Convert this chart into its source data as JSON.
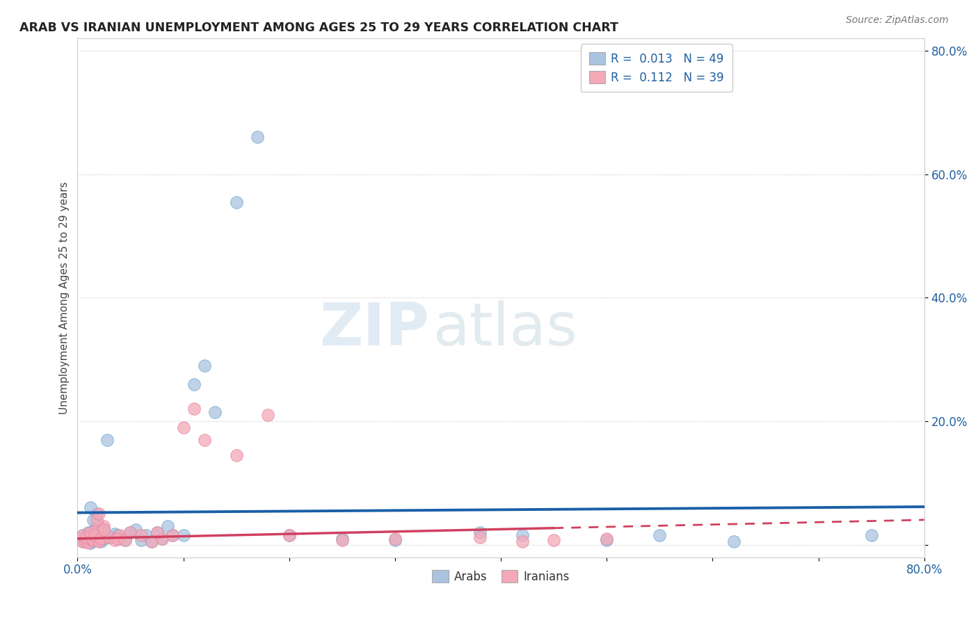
{
  "title": "ARAB VS IRANIAN UNEMPLOYMENT AMONG AGES 25 TO 29 YEARS CORRELATION CHART",
  "source": "Source: ZipAtlas.com",
  "ylabel": "Unemployment Among Ages 25 to 29 years",
  "xlabel": "",
  "xlim": [
    0.0,
    0.8
  ],
  "ylim": [
    -0.02,
    0.82
  ],
  "xticks": [
    0.0,
    0.1,
    0.2,
    0.3,
    0.4,
    0.5,
    0.6,
    0.7,
    0.8
  ],
  "yticks": [
    0.0,
    0.2,
    0.4,
    0.6,
    0.8
  ],
  "xtick_labels": [
    "0.0%",
    "",
    "",
    "",
    "",
    "",
    "",
    "",
    "80.0%"
  ],
  "ytick_labels": [
    "",
    "20.0%",
    "40.0%",
    "60.0%",
    "80.0%"
  ],
  "background_color": "#ffffff",
  "plot_bg_color": "#ffffff",
  "grid_color": "#cccccc",
  "arab_color": "#aac4e0",
  "iranian_color": "#f4a8b8",
  "arab_edge_color": "#7aabcf",
  "iranian_edge_color": "#e888a0",
  "arab_line_color": "#1a5fa8",
  "iranian_line_color": "#d04060",
  "arab_R": "0.013",
  "arab_N": "49",
  "iranian_R": "0.112",
  "iranian_N": "39",
  "watermark_zip": "ZIP",
  "watermark_atlas": "atlas",
  "arab_x": [
    0.005,
    0.008,
    0.01,
    0.012,
    0.015,
    0.005,
    0.008,
    0.01,
    0.013,
    0.016,
    0.02,
    0.018,
    0.022,
    0.025,
    0.02,
    0.015,
    0.03,
    0.025,
    0.018,
    0.012,
    0.035,
    0.04,
    0.038,
    0.045,
    0.05,
    0.028,
    0.06,
    0.055,
    0.065,
    0.07,
    0.08,
    0.075,
    0.09,
    0.085,
    0.1,
    0.11,
    0.12,
    0.13,
    0.15,
    0.17,
    0.2,
    0.25,
    0.3,
    0.38,
    0.42,
    0.5,
    0.55,
    0.62,
    0.75
  ],
  "arab_y": [
    0.005,
    0.01,
    0.008,
    0.003,
    0.007,
    0.015,
    0.012,
    0.02,
    0.018,
    0.025,
    0.008,
    0.015,
    0.005,
    0.01,
    0.03,
    0.04,
    0.012,
    0.025,
    0.05,
    0.06,
    0.018,
    0.01,
    0.015,
    0.008,
    0.02,
    0.17,
    0.008,
    0.025,
    0.015,
    0.005,
    0.01,
    0.02,
    0.015,
    0.03,
    0.015,
    0.26,
    0.29,
    0.215,
    0.555,
    0.66,
    0.015,
    0.01,
    0.008,
    0.02,
    0.015,
    0.008,
    0.015,
    0.005,
    0.015
  ],
  "iranian_x": [
    0.005,
    0.007,
    0.01,
    0.012,
    0.005,
    0.008,
    0.012,
    0.015,
    0.018,
    0.02,
    0.016,
    0.022,
    0.025,
    0.018,
    0.03,
    0.025,
    0.02,
    0.035,
    0.04,
    0.038,
    0.045,
    0.05,
    0.06,
    0.07,
    0.08,
    0.075,
    0.09,
    0.1,
    0.11,
    0.12,
    0.15,
    0.18,
    0.2,
    0.25,
    0.3,
    0.38,
    0.42,
    0.45,
    0.5
  ],
  "iranian_y": [
    0.005,
    0.008,
    0.003,
    0.01,
    0.015,
    0.012,
    0.02,
    0.008,
    0.025,
    0.005,
    0.015,
    0.01,
    0.03,
    0.04,
    0.012,
    0.025,
    0.05,
    0.008,
    0.015,
    0.01,
    0.008,
    0.02,
    0.015,
    0.005,
    0.01,
    0.02,
    0.015,
    0.19,
    0.22,
    0.17,
    0.145,
    0.21,
    0.015,
    0.008,
    0.01,
    0.012,
    0.005,
    0.008,
    0.01
  ]
}
